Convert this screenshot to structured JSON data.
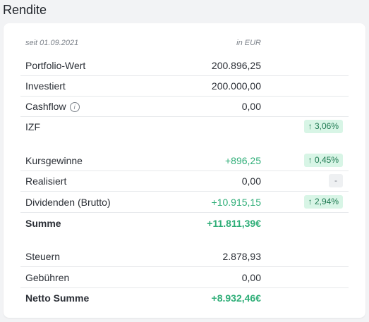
{
  "title": "Rendite",
  "header": {
    "since": "seit 01.09.2021",
    "currency": "in EUR"
  },
  "rows": [
    {
      "label": "Portfolio-Wert",
      "value": "200.896,25"
    },
    {
      "label": "Investiert",
      "value": "200.000,00"
    },
    {
      "label": "Cashflow",
      "value": "0,00"
    },
    {
      "label": "IZF",
      "badge": "↑ 3,06%"
    },
    {
      "label": "Kursgewinne",
      "value": "+896,25",
      "badge": "↑ 0,45%"
    },
    {
      "label": "Realisiert",
      "value": "0,00",
      "badge": "-"
    },
    {
      "label": "Dividenden (Brutto)",
      "value": "+10.915,15",
      "badge": "↑ 2,94%"
    },
    {
      "label": "Summe",
      "value": "+11.811,39€"
    },
    {
      "label": "Steuern",
      "value": "2.878,93"
    },
    {
      "label": "Gebühren",
      "value": "0,00"
    },
    {
      "label": "Netto Summe",
      "value": "+8.932,46€"
    }
  ],
  "icons": {
    "cashflow_info": "info-icon"
  },
  "colors": {
    "positive": "#2fae78",
    "badge_bg": "#d8f5e6"
  }
}
